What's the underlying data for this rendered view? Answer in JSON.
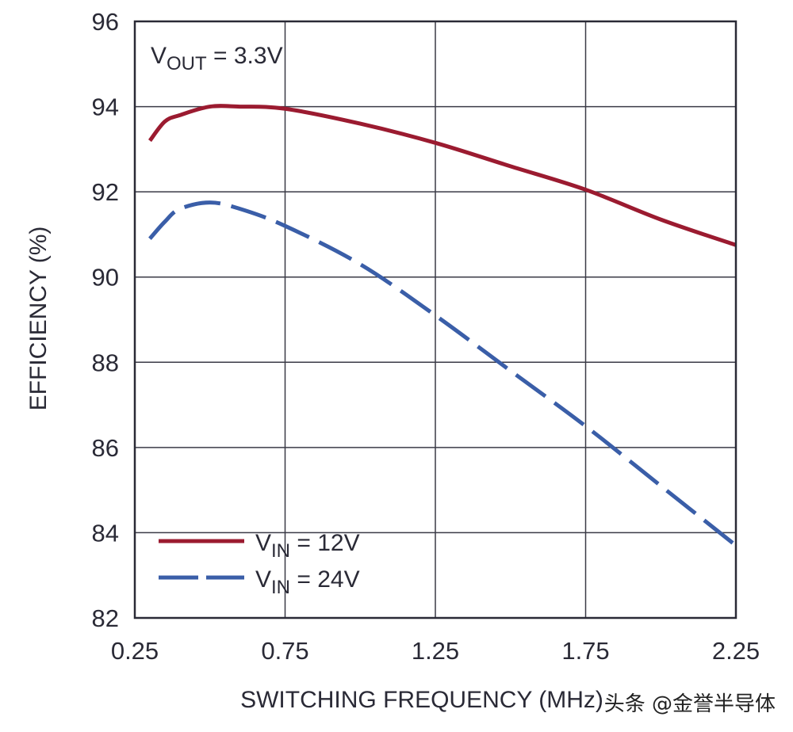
{
  "chart_data": {
    "type": "line",
    "title": "",
    "annotation": {
      "main": "V",
      "sub": "OUT",
      "rest": " = 3.3V"
    },
    "xlabel": "SWITCHING FREQUENCY (MHz)",
    "ylabel": "EFFICIENCY (%)",
    "xlim": [
      0.25,
      2.25
    ],
    "ylim": [
      82,
      96
    ],
    "xticks": [
      0.25,
      0.75,
      1.25,
      1.75,
      2.25
    ],
    "xtick_labels": [
      "0.25",
      "0.75",
      "1.25",
      "1.75",
      "2.25"
    ],
    "yticks": [
      82,
      84,
      86,
      88,
      90,
      92,
      94,
      96
    ],
    "ytick_labels": [
      "82",
      "84",
      "86",
      "88",
      "90",
      "92",
      "94",
      "96"
    ],
    "grid": true,
    "legend_position": "bottom-left",
    "series": [
      {
        "name": "VIN = 12V",
        "label_main": "V",
        "label_sub": "IN",
        "label_rest": " = 12V",
        "color": "#9b1b30",
        "style": "solid",
        "x": [
          0.3,
          0.35,
          0.4,
          0.5,
          0.6,
          0.75,
          1.0,
          1.25,
          1.5,
          1.75,
          2.0,
          2.25
        ],
        "y": [
          93.2,
          93.65,
          93.8,
          94.0,
          94.0,
          93.95,
          93.6,
          93.15,
          92.6,
          92.05,
          91.35,
          90.75
        ]
      },
      {
        "name": "VIN = 24V",
        "label_main": "V",
        "label_sub": "IN",
        "label_rest": " = 24V",
        "color": "#3a5ea8",
        "style": "dashed",
        "x": [
          0.3,
          0.35,
          0.4,
          0.5,
          0.6,
          0.75,
          1.0,
          1.25,
          1.5,
          1.75,
          2.0,
          2.25
        ],
        "y": [
          90.9,
          91.3,
          91.6,
          91.75,
          91.6,
          91.2,
          90.3,
          89.1,
          87.8,
          86.5,
          85.1,
          83.7
        ]
      }
    ]
  },
  "watermark": "头条 @金誉半导体"
}
